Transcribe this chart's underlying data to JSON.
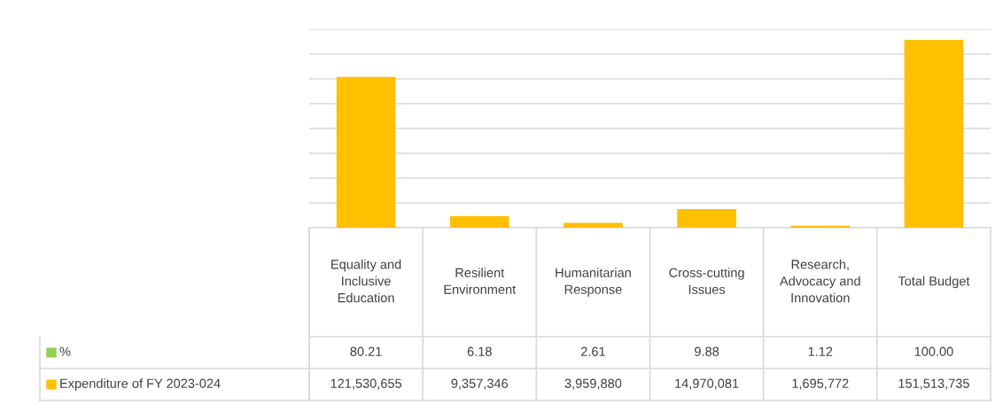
{
  "chart_data": {
    "type": "bar",
    "data_labels": true,
    "categories": [
      "Equality and Inclusive Education",
      "Resilient Environment",
      "Humanitarian Response",
      "Cross-cutting Issues",
      "Research, Advocacy and Innovation",
      "Total Budget"
    ],
    "series": [
      {
        "name": "Expenditure of FY 2023-024",
        "color": "#ffc000",
        "values": [
          121530655,
          9357346,
          3959880,
          14970081,
          1695772,
          151513735
        ],
        "value_labels": [
          "121,530,655",
          "9,357,346",
          "3,959,880",
          "14,970,081",
          "1,695,772",
          "151,513,735"
        ]
      },
      {
        "name": "%",
        "color": "#92d050",
        "values": [
          80.21,
          6.18,
          2.61,
          9.88,
          1.12,
          100.0
        ],
        "value_labels": [
          "80.21",
          "6.18",
          "2.61",
          "9.88",
          "1.12",
          "100.00"
        ]
      }
    ],
    "ylim": [
      0,
      160000000
    ],
    "yticks": [
      {
        "value": 0,
        "label": null
      },
      {
        "value": 20000000,
        "label": null
      },
      {
        "value": 40000000,
        "label": null
      },
      {
        "value": 60000000,
        "label": null
      },
      {
        "value": 80000000,
        "label": null
      },
      {
        "value": 100000000,
        "label": null
      },
      {
        "value": 120000000,
        "label": null
      },
      {
        "value": 140000000,
        "label": null
      },
      {
        "value": 160000000,
        "label": null
      }
    ],
    "grid": "y"
  }
}
